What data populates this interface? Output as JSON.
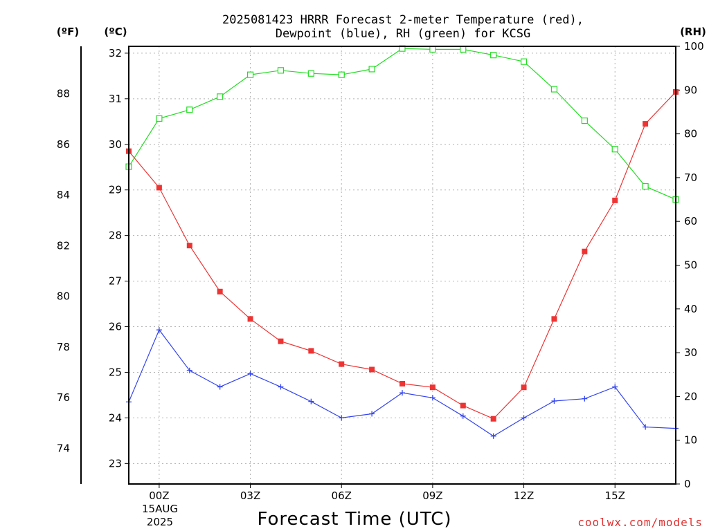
{
  "chart_data": {
    "type": "line",
    "title_line1": "2025081423 HRRR Forecast 2-meter Temperature (red),",
    "title_line2": "Dewpoint (blue), RH (green) for KCSG",
    "xlabel": "Forecast Time (UTC)",
    "credit": "coolwx.com/models",
    "unit_f": "(ºF)",
    "unit_c": "(ºC)",
    "unit_rh": "(RH)",
    "x_hours": [
      -1,
      0,
      1,
      2,
      3,
      4,
      5,
      6,
      7,
      8,
      9,
      10,
      11,
      12,
      13,
      14,
      15,
      16,
      17
    ],
    "x_ticks": [
      {
        "hour": 0,
        "label": "00Z"
      },
      {
        "hour": 3,
        "label": "03Z"
      },
      {
        "hour": 6,
        "label": "06Z"
      },
      {
        "hour": 9,
        "label": "09Z"
      },
      {
        "hour": 12,
        "label": "12Z"
      },
      {
        "hour": 15,
        "label": "15Z"
      }
    ],
    "date_line1": "15AUG",
    "date_line2": "2025",
    "celsius_axis": {
      "min": 22.55,
      "max": 32.15,
      "ticks": [
        23,
        24,
        25,
        26,
        27,
        28,
        29,
        30,
        31,
        32
      ]
    },
    "fahrenheit_ticks": [
      74,
      76,
      78,
      80,
      82,
      84,
      86,
      88
    ],
    "rh_axis": {
      "min": 0,
      "max": 100,
      "ticks": [
        0,
        10,
        20,
        30,
        40,
        50,
        60,
        70,
        80,
        90,
        100
      ]
    },
    "series": [
      {
        "name": "Temperature",
        "axis": "celsius",
        "color": "#ee3333",
        "marker": "filled-square",
        "values": [
          29.85,
          29.05,
          27.78,
          26.77,
          26.17,
          25.68,
          25.47,
          25.18,
          25.06,
          24.75,
          24.67,
          24.27,
          23.98,
          24.67,
          26.17,
          27.65,
          28.77,
          30.45,
          31.15
        ]
      },
      {
        "name": "Dewpoint",
        "axis": "celsius",
        "color": "#3344ee",
        "marker": "plus",
        "values": [
          24.35,
          25.93,
          25.04,
          24.68,
          24.97,
          24.68,
          24.36,
          24.0,
          24.09,
          24.55,
          24.44,
          24.04,
          23.6,
          24.0,
          24.37,
          24.42,
          24.68,
          23.8,
          23.77
        ]
      },
      {
        "name": "RH",
        "axis": "rh",
        "color": "#22dd22",
        "marker": "open-square",
        "values": [
          72.5,
          83.5,
          85.5,
          88.5,
          93.5,
          94.5,
          93.8,
          93.5,
          94.8,
          99.5,
          99.3,
          99.3,
          98.0,
          96.5,
          90.2,
          83.0,
          76.5,
          68.0,
          65.0
        ]
      }
    ],
    "grid": true
  },
  "colors": {
    "temperature": "#ee3333",
    "dewpoint": "#3344ee",
    "rh": "#22dd22",
    "credit": "#e03030"
  }
}
